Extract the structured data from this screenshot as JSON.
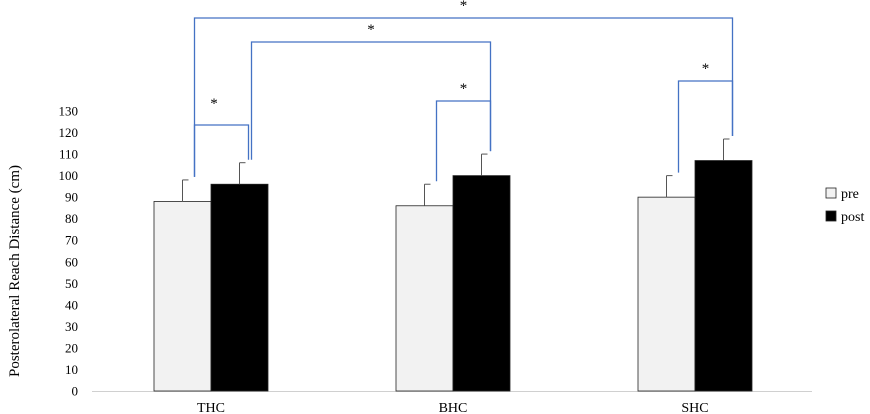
{
  "chart_data": {
    "type": "bar",
    "title": "",
    "xlabel": "",
    "ylabel": "Posterolateral Reach Distance (cm)",
    "ylim": [
      0,
      130
    ],
    "ytick_step": 10,
    "grid": false,
    "legend_position": "right",
    "categories": [
      "THC",
      "BHC",
      "SHC"
    ],
    "series": [
      {
        "name": "pre",
        "values": [
          88,
          86,
          90
        ],
        "errors": [
          10,
          10,
          10
        ],
        "color": "#f2f2f2"
      },
      {
        "name": "post",
        "values": [
          96,
          100,
          107
        ],
        "errors": [
          10,
          10,
          10
        ],
        "color": "#000000"
      }
    ],
    "significance": [
      {
        "from": [
          0,
          0
        ],
        "to": [
          0,
          1
        ],
        "label": "*"
      },
      {
        "from": [
          1,
          0
        ],
        "to": [
          1,
          1
        ],
        "label": "*"
      },
      {
        "from": [
          2,
          0
        ],
        "to": [
          2,
          1
        ],
        "label": "*"
      },
      {
        "from": [
          0,
          1
        ],
        "to": [
          1,
          1
        ],
        "label": "*"
      },
      {
        "from": [
          0,
          0
        ],
        "to": [
          2,
          1
        ],
        "label": "*"
      }
    ],
    "bracket_color": "#4472c4"
  }
}
